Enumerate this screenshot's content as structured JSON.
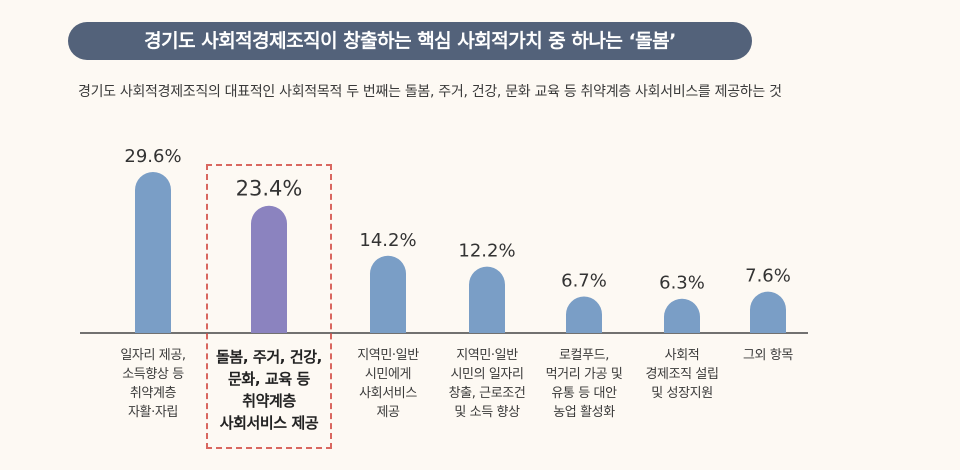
{
  "header": {
    "title": "경기도 사회적경제조직이 창출하는 핵심 사회적가치 중 하나는 ‘돌봄’",
    "subtitle": "경기도 사회적경제조직의 대표적인 사회적목적 두 번째는 돌봄, 주거, 건강, 문화 교육 등 취약계층 사회서비스를 제공하는 것"
  },
  "colors": {
    "bar": "#7a9ec6",
    "highlight_bar": "#8b83bf",
    "title_bg": "#53627a",
    "highlight_border": "#d9675f",
    "axis": "#444444"
  },
  "chart_data": {
    "type": "bar",
    "title": "경기도 사회적경제조직이 창출하는 핵심 사회적가치 중 하나는 ‘돌봄’",
    "xlabel": "",
    "ylabel": "",
    "ylim": [
      0,
      32
    ],
    "grid": false,
    "legend": "none",
    "highlight_index": 1,
    "categories": [
      "일자리 제공,\n소득향상 등\n취약계층\n자활·자립",
      "돌봄, 주거, 건강,\n문화, 교육 등\n취약계층\n사회서비스 제공",
      "지역민·일반\n시민에게\n사회서비스\n제공",
      "지역민·일반\n시민의 일자리\n창출, 근로조건\n및 소득 향상",
      "로컬푸드,\n먹거리 가공 및\n유통 등 대안\n농업 활성화",
      "사회적\n경제조직 설립\n및 성장지원",
      "그외 항목"
    ],
    "values": [
      29.6,
      23.4,
      14.2,
      12.2,
      6.7,
      6.3,
      7.6
    ],
    "data_labels": [
      "29.6%",
      "23.4%",
      "14.2%",
      "12.2%",
      "6.7%",
      "6.3%",
      "7.6%"
    ]
  }
}
